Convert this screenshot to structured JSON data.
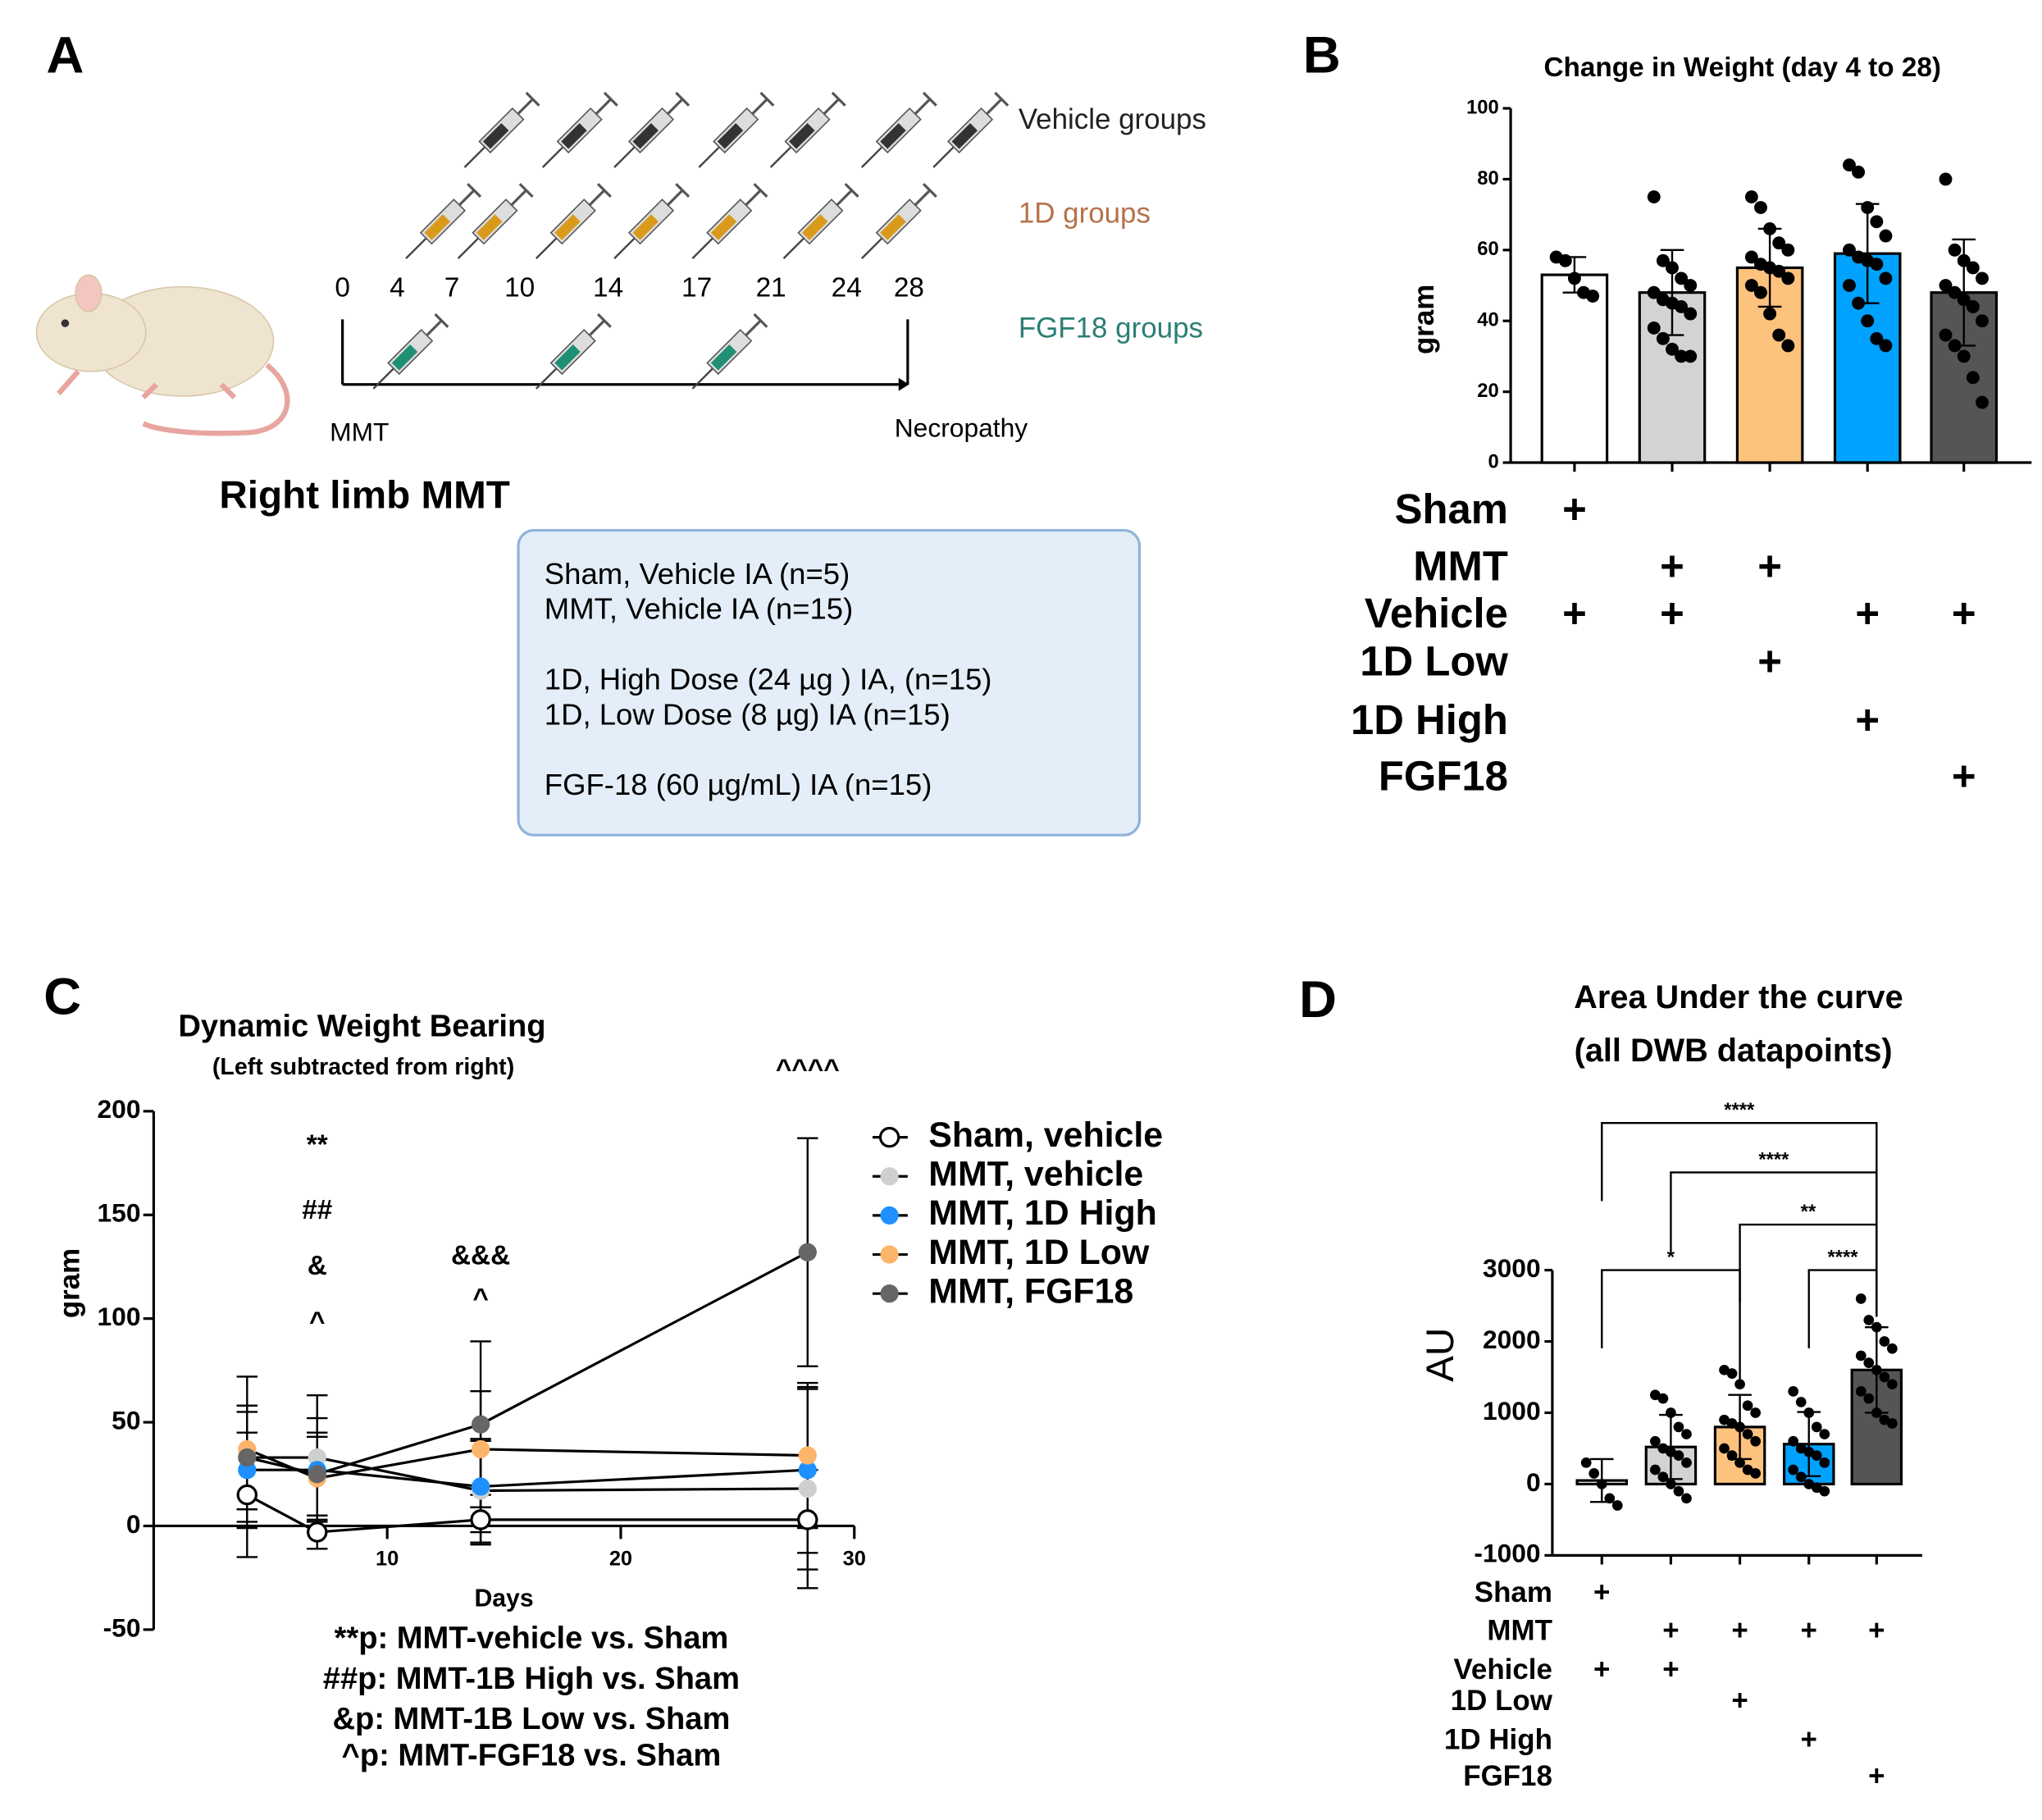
{
  "panel_labels": [
    "A",
    "B",
    "C",
    "D"
  ],
  "diagram": {
    "groups": [
      "Vehicle groups",
      "1D groups",
      "FGF18 groups"
    ],
    "days": [
      "0",
      "4",
      "7",
      "10",
      "14",
      "17",
      "21",
      "24",
      "28"
    ],
    "start": "MMT",
    "end": "Necropathy",
    "caption": "Right limb MMT",
    "legend_box": [
      "Sham, Vehicle IA (n=5)",
      "MMT, Vehicle IA (n=15)",
      "1D, High  Dose (24 µg ) IA, (n=15)",
      "1D, Low Dose (8 µg) IA (n=15)",
      "FGF-18 (60 µg/mL) IA (n=15)"
    ]
  },
  "chart_data": [
    {
      "type": "bar",
      "title": "Change in Weight (day 4 to 28)",
      "ylabel": "gram",
      "categories": [
        null,
        null,
        null,
        null,
        null
      ],
      "values": [
        53,
        48,
        55,
        59,
        48
      ],
      "errors": [
        5,
        12,
        11,
        14,
        15
      ],
      "colors": [
        "#ffffff",
        "#d3d3d3",
        "#fdc27e",
        "#00a2ff",
        "#555555"
      ],
      "points": [
        [
          58,
          57,
          52,
          48,
          47
        ],
        [
          75,
          57,
          55,
          52,
          50,
          48,
          46,
          45,
          44,
          42,
          38,
          35,
          32,
          30,
          30
        ],
        [
          75,
          72,
          66,
          62,
          60,
          58,
          56,
          55,
          54,
          52,
          50,
          48,
          42,
          36,
          33
        ],
        [
          84,
          82,
          72,
          68,
          64,
          60,
          58,
          57,
          56,
          52,
          50,
          45,
          40,
          35,
          33
        ],
        [
          80,
          60,
          57,
          55,
          52,
          50,
          48,
          46,
          44,
          40,
          36,
          33,
          30,
          24,
          17
        ]
      ],
      "ylim": [
        0,
        100
      ],
      "yticks": [
        0,
        20,
        40,
        60,
        80,
        100
      ],
      "design": [
        {
          "label": "Sham",
          "marks": [
            "+",
            null,
            null,
            null,
            null
          ]
        },
        {
          "label": "MMT",
          "marks": [
            null,
            "+",
            "+",
            null,
            null
          ]
        },
        {
          "label": "Vehicle",
          "marks": [
            "+",
            "+",
            null,
            "+",
            "+"
          ]
        },
        {
          "label": "1D Low",
          "marks": [
            null,
            null,
            "+",
            null,
            null
          ]
        },
        {
          "label": "1D High",
          "marks": [
            null,
            null,
            null,
            "+",
            null
          ]
        },
        {
          "label": "FGF18",
          "marks": [
            null,
            null,
            null,
            null,
            "+"
          ]
        }
      ]
    },
    {
      "type": "line",
      "title": "Dynamic Weight Bearing",
      "subtitle": "(Left subtracted from right)",
      "xlabel": "Days",
      "ylabel": "gram",
      "x": [
        4,
        7,
        14,
        28
      ],
      "series": [
        {
          "name": "Sham, vehicle",
          "color": "#000000",
          "marker": "open",
          "values": [
            15,
            -3,
            3,
            3
          ],
          "errors": [
            30,
            8,
            12,
            24
          ]
        },
        {
          "name": "MMT, vehicle",
          "color": "#cfcfcf",
          "marker": "filled",
          "values": [
            33,
            33,
            17,
            18
          ],
          "errors": [
            25,
            30,
            25,
            48
          ]
        },
        {
          "name": "MMT, 1D High",
          "color": "#1e90ff",
          "marker": "filled",
          "values": [
            27,
            27,
            19,
            27
          ],
          "errors": [
            28,
            25,
            22,
            40
          ]
        },
        {
          "name": "MMT, 1D Low",
          "color": "#fdb56b",
          "marker": "filled",
          "values": [
            37,
            23,
            37,
            34
          ],
          "errors": [
            35,
            20,
            28,
            35
          ]
        },
        {
          "name": "MMT, FGF18",
          "color": "#666666",
          "marker": "filled",
          "values": [
            33,
            25,
            49,
            132
          ],
          "errors": [
            25,
            20,
            40,
            55
          ]
        }
      ],
      "xlim": [
        0,
        30
      ],
      "xticks": [
        10,
        20,
        30
      ],
      "ylim": [
        -50,
        200
      ],
      "yticks": [
        -50,
        0,
        50,
        100,
        150,
        200
      ],
      "annotations": [
        {
          "x": 7,
          "text": "**"
        },
        {
          "x": 7,
          "text": "##"
        },
        {
          "x": 7,
          "text": "&"
        },
        {
          "x": 7,
          "text": "^"
        },
        {
          "x": 14,
          "text": "&&&"
        },
        {
          "x": 14,
          "text": "^"
        },
        {
          "x": 28,
          "text": "^^^^"
        }
      ],
      "notes": [
        "**p: MMT-vehicle vs. Sham",
        "##p: MMT-1B High vs. Sham",
        "&p: MMT-1B Low vs. Sham",
        "^p: MMT-FGF18 vs. Sham"
      ]
    },
    {
      "type": "bar",
      "title": "Area Under the curve",
      "subtitle": "(all DWB datapoints)",
      "ylabel": "AU",
      "categories": [
        null,
        null,
        null,
        null,
        null
      ],
      "values": [
        50,
        520,
        800,
        560,
        1600
      ],
      "errors": [
        300,
        450,
        450,
        450,
        600
      ],
      "colors": [
        "#ffffff",
        "#d3d3d3",
        "#fdc27e",
        "#00a2ff",
        "#555555"
      ],
      "points": [
        [
          300,
          150,
          0,
          -200,
          -300
        ],
        [
          1250,
          1200,
          1000,
          800,
          700,
          600,
          500,
          450,
          400,
          300,
          200,
          100,
          0,
          -100,
          -200
        ],
        [
          1600,
          1550,
          1400,
          1100,
          1000,
          900,
          850,
          800,
          700,
          600,
          500,
          400,
          300,
          200,
          150
        ],
        [
          1300,
          1150,
          1000,
          800,
          700,
          600,
          500,
          450,
          400,
          300,
          200,
          100,
          0,
          -50,
          -100
        ],
        [
          2600,
          2300,
          2200,
          2000,
          1900,
          1800,
          1700,
          1600,
          1500,
          1400,
          1300,
          1200,
          1000,
          900,
          850
        ]
      ],
      "ylim": [
        -1000,
        3000
      ],
      "yticks": [
        -1000,
        0,
        1000,
        2000,
        3000
      ],
      "brackets": [
        {
          "between": [
            0,
            4
          ],
          "text": "****"
        },
        {
          "between": [
            1,
            4
          ],
          "text": "****"
        },
        {
          "between": [
            2,
            4
          ],
          "text": "**"
        },
        {
          "between": [
            3,
            4
          ],
          "text": "****"
        },
        {
          "between": [
            0,
            2
          ],
          "text": "*"
        }
      ],
      "design": [
        {
          "label": "Sham",
          "marks": [
            "+",
            null,
            null,
            null,
            null
          ]
        },
        {
          "label": "MMT",
          "marks": [
            null,
            "+",
            "+",
            "+",
            "+"
          ]
        },
        {
          "label": "Vehicle",
          "marks": [
            "+",
            "+",
            null,
            null,
            null
          ]
        },
        {
          "label": "1D Low",
          "marks": [
            null,
            null,
            "+",
            null,
            null
          ]
        },
        {
          "label": "1D High",
          "marks": [
            null,
            null,
            null,
            "+",
            null
          ]
        },
        {
          "label": "FGF18",
          "marks": [
            null,
            null,
            null,
            null,
            "+"
          ]
        }
      ]
    }
  ]
}
